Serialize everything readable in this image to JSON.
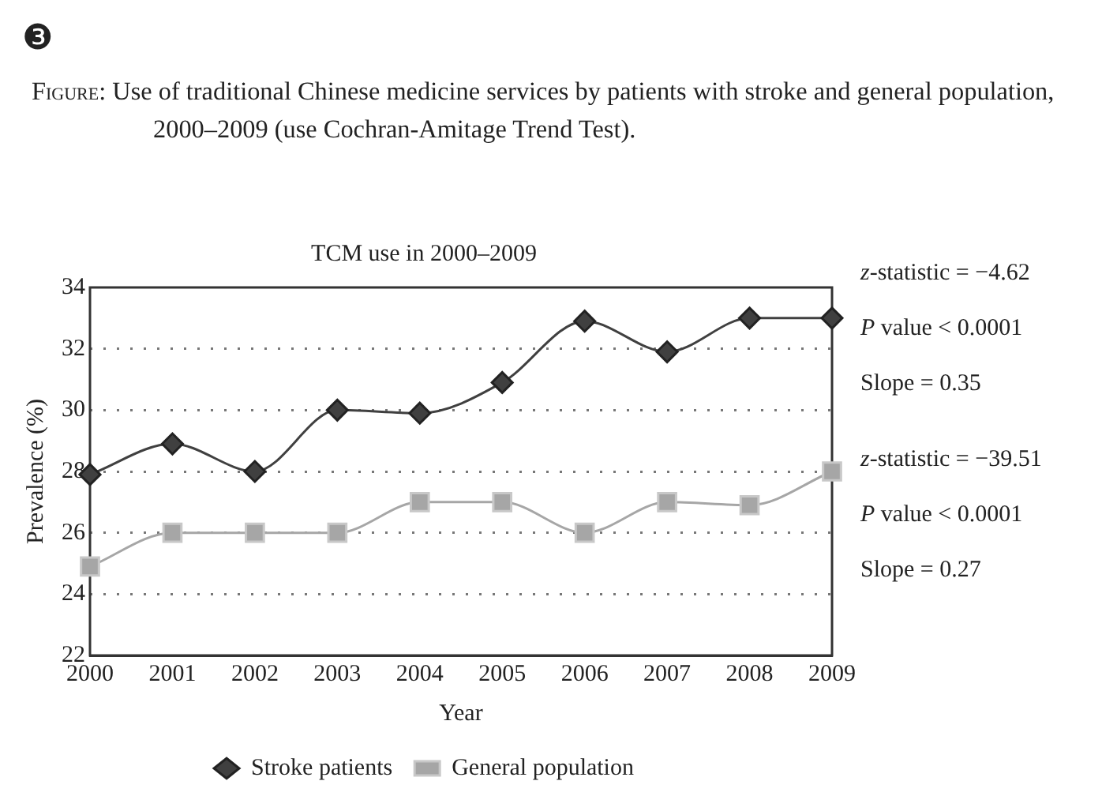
{
  "chart_data": {
    "type": "line",
    "title": "TCM use in 2000–2009",
    "subtitle": "Figure: Use of traditional Chinese medicine services by patients with stroke and general population, 2000–2009 (use Cochran-Amitage Trend Test).",
    "xlabel": "Year",
    "ylabel": "Prevalence (%)",
    "categories": [
      "2000",
      "2001",
      "2002",
      "2003",
      "2004",
      "2005",
      "2006",
      "2007",
      "2008",
      "2009"
    ],
    "series": [
      {
        "name": "Stroke patients",
        "color": "#404040",
        "marker": "diamond",
        "values": [
          27.9,
          28.9,
          28,
          30,
          29.9,
          30.9,
          32.9,
          31.9,
          33,
          33
        ]
      },
      {
        "name": "General population",
        "color": "#a6a6a6",
        "marker": "square",
        "values": [
          24.9,
          26,
          26,
          26,
          27,
          27,
          26,
          27,
          26.9,
          28
        ]
      }
    ],
    "ylim": [
      22,
      34
    ],
    "yticks": [
      22,
      24,
      26,
      28,
      30,
      32,
      34
    ],
    "grid": "y",
    "legend": "bottom",
    "annotations": [
      "❸",
      "z-statistic = −4.62",
      "P value < 0.0001",
      "Slope = 0.35",
      "z-statistic = −39.51",
      "P value < 0.0001",
      "Slope = 0.27"
    ]
  }
}
